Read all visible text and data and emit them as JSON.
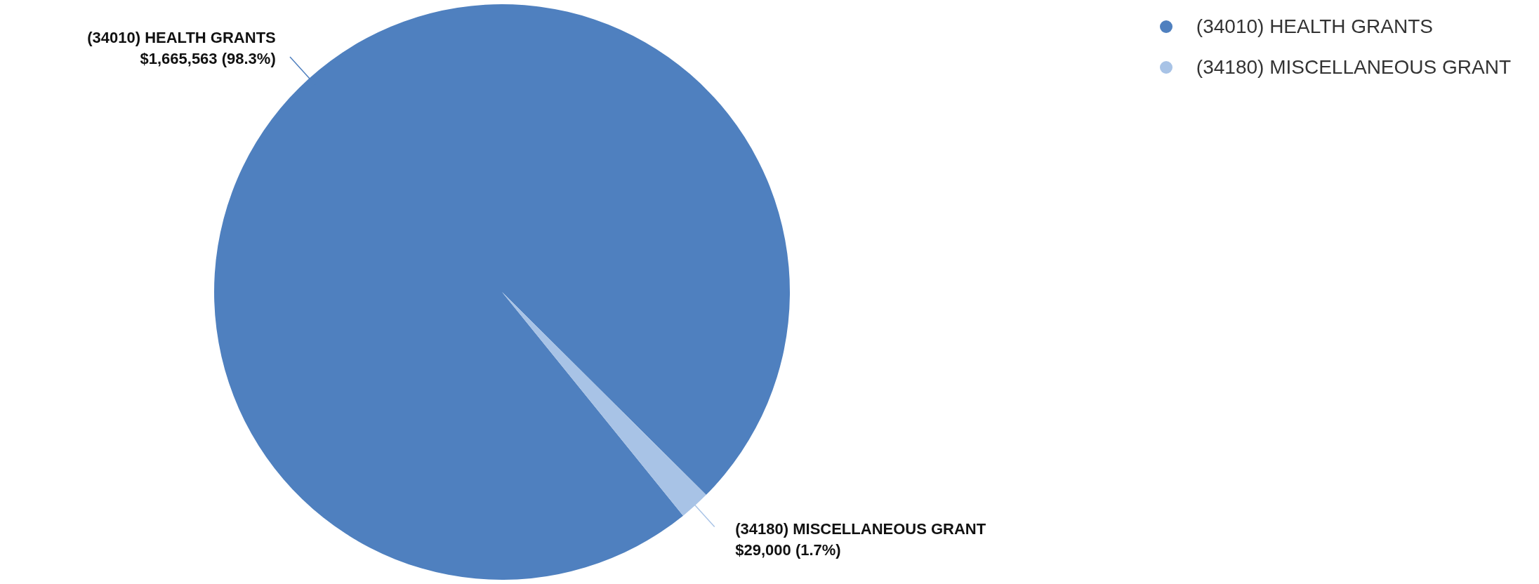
{
  "chart_data": {
    "type": "pie",
    "categories": [
      "(34010) HEALTH GRANTS",
      "(34180) MISCELLANEOUS GRANT"
    ],
    "values": [
      1665563,
      29000
    ],
    "colors": [
      "#4f80bf",
      "#a8c3e6"
    ],
    "value_labels": [
      "$1,665,563 (98.3%)",
      "$29,000 (1.7%)"
    ],
    "legend": "top right"
  }
}
